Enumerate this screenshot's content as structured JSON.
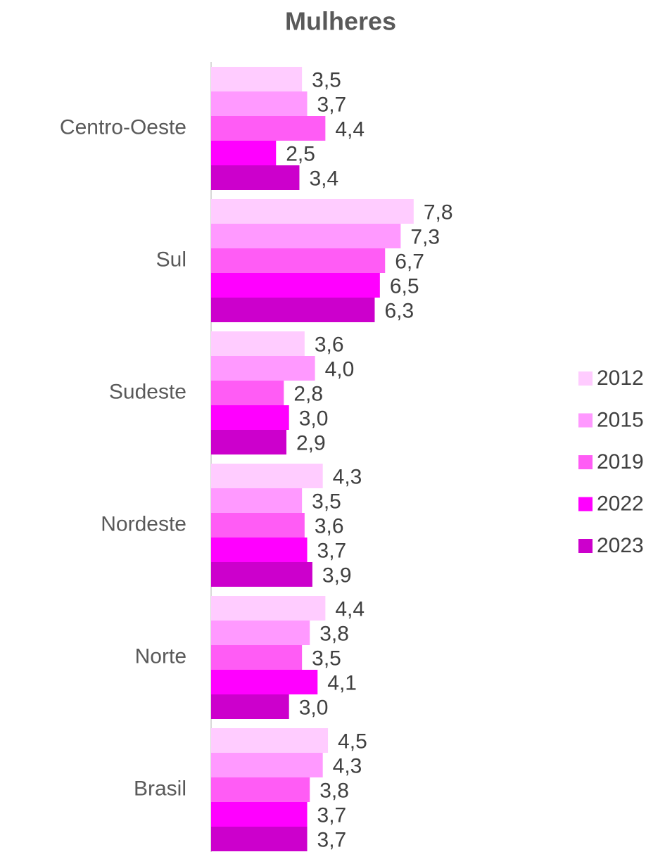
{
  "chart_data": {
    "type": "barh",
    "title": "Mulheres",
    "categories": [
      "Centro-Oeste",
      "Sul",
      "Sudeste",
      "Nordeste",
      "Norte",
      "Brasil"
    ],
    "series": [
      {
        "name": "2012",
        "color": "#ffccff",
        "values": [
          3.5,
          7.8,
          3.6,
          4.3,
          4.4,
          4.5
        ],
        "value_labels": [
          "3,5",
          "7,8",
          "3,6",
          "4,3",
          "4,4",
          "4,5"
        ]
      },
      {
        "name": "2015",
        "color": "#ff99ff",
        "values": [
          3.7,
          7.3,
          4.0,
          3.5,
          3.8,
          4.3
        ],
        "value_labels": [
          "3,7",
          "7,3",
          "4,0",
          "3,5",
          "3,8",
          "4,3"
        ]
      },
      {
        "name": "2019",
        "color": "#ff5cf5",
        "values": [
          4.4,
          6.7,
          2.8,
          3.6,
          3.5,
          3.8
        ],
        "value_labels": [
          "4,4",
          "6,7",
          "2,8",
          "3,6",
          "3,5",
          "3,8"
        ]
      },
      {
        "name": "2022",
        "color": "#ff00ff",
        "values": [
          2.5,
          6.5,
          3.0,
          3.7,
          4.1,
          3.7
        ],
        "value_labels": [
          "2,5",
          "6,5",
          "3,0",
          "3,7",
          "4,1",
          "3,7"
        ]
      },
      {
        "name": "2023",
        "color": "#cc00cc",
        "values": [
          3.4,
          6.3,
          2.9,
          3.9,
          3.0,
          3.7
        ],
        "value_labels": [
          "3,4",
          "6,3",
          "2,9",
          "3,9",
          "3,0",
          "3,7"
        ]
      }
    ],
    "legend": "right"
  }
}
